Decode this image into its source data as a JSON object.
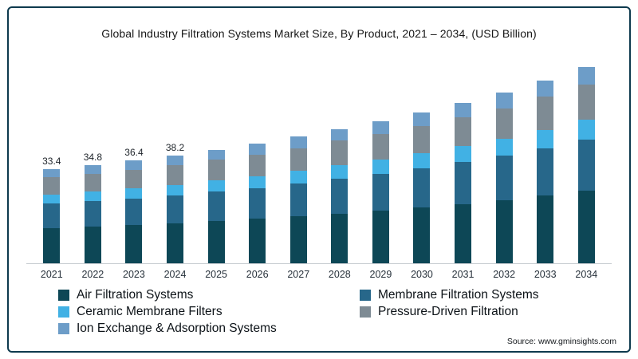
{
  "source": "Source: www.gminsights.com",
  "colors": {
    "border": "#0e3a4e",
    "axis_line": "#c7ccd1"
  },
  "chart_data": {
    "type": "bar",
    "stacked": true,
    "title": "Global Industry Filtration Systems Market Size, By Product, 2021 – 2034, (USD Billion)",
    "categories": [
      "2021",
      "2022",
      "2023",
      "2024",
      "2025",
      "2026",
      "2027",
      "2028",
      "2029",
      "2030",
      "2031",
      "2032",
      "2033",
      "2034"
    ],
    "series": [
      {
        "name": "Air Filtration Systems",
        "color": "#0d4756",
        "values": [
          12.4,
          12.9,
          13.5,
          14.1,
          14.9,
          15.7,
          16.6,
          17.6,
          18.6,
          19.8,
          21.0,
          22.3,
          24.0,
          25.7
        ]
      },
      {
        "name": "Membrane Filtration Systems",
        "color": "#27678a",
        "values": [
          8.7,
          9.0,
          9.5,
          9.9,
          10.5,
          11.0,
          11.6,
          12.4,
          13.1,
          13.9,
          14.8,
          15.7,
          16.8,
          18.1
        ]
      },
      {
        "name": "Ceramic Membrane Filters",
        "color": "#41b1e4",
        "values": [
          3.3,
          3.5,
          3.6,
          3.8,
          4.0,
          4.2,
          4.5,
          4.8,
          5.0,
          5.4,
          5.7,
          6.0,
          6.5,
          7.0
        ]
      },
      {
        "name": "Pressure-Driven Filtration",
        "color": "#7e8b94",
        "values": [
          6.0,
          6.3,
          6.6,
          6.9,
          7.2,
          7.6,
          8.1,
          8.6,
          9.1,
          9.6,
          10.2,
          10.9,
          11.7,
          12.5
        ]
      },
      {
        "name": "Ion Exchange & Adsorption Systems",
        "color": "#6d9dc8",
        "values": [
          3.0,
          3.1,
          3.2,
          3.5,
          3.6,
          3.9,
          4.0,
          4.1,
          4.6,
          4.8,
          5.1,
          5.5,
          5.8,
          6.2
        ]
      }
    ],
    "totals": [
      33.4,
      34.8,
      36.4,
      38.2,
      40.2,
      42.4,
      44.8,
      47.5,
      50.4,
      53.5,
      56.8,
      60.4,
      64.8,
      69.5
    ],
    "bar_labels": [
      "33.4",
      "34.8",
      "36.4",
      "38.2",
      "",
      "",
      "",
      "",
      "",
      "",
      "",
      "",
      "",
      ""
    ],
    "ylim": [
      0,
      74
    ],
    "grid": false,
    "legend_position": "bottom"
  }
}
